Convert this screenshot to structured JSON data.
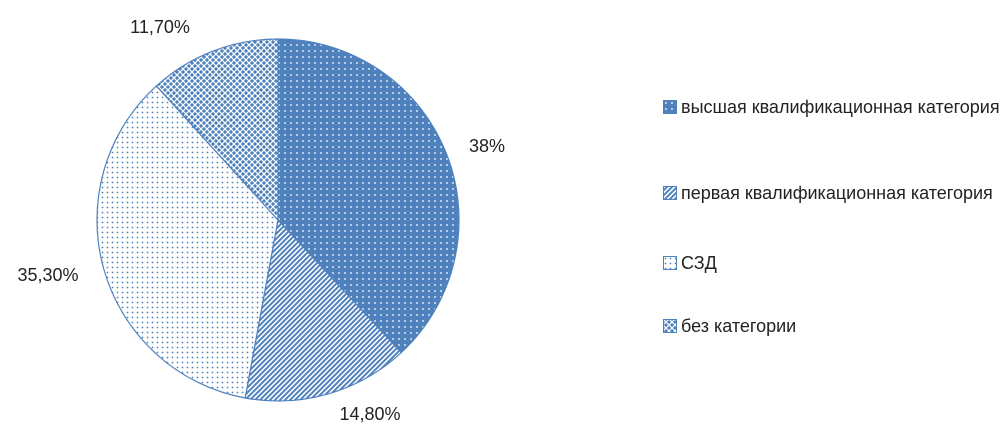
{
  "chart_data": {
    "type": "pie",
    "categories": [
      "высшая квалификационная категория",
      "первая квалификационная категория",
      "СЗД",
      "без категории"
    ],
    "values": [
      38,
      14.8,
      35.3,
      11.7
    ],
    "value_labels": [
      "38%",
      "14,80%",
      "35,30%",
      "11,70%"
    ],
    "color": "#4f81bd",
    "legend": "right"
  }
}
